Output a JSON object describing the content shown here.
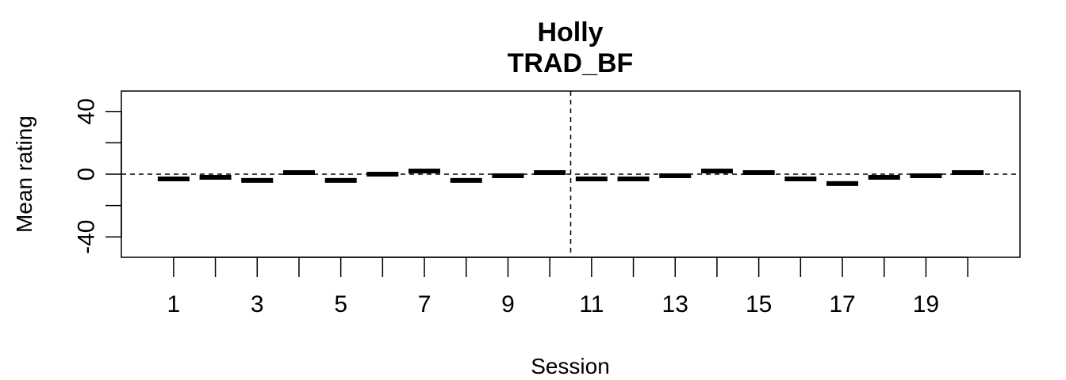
{
  "chart_data": {
    "type": "scatter",
    "title": "Holly",
    "subtitle": "TRAD_BF",
    "xlabel": "Session",
    "ylabel": "Mean rating",
    "x": [
      1,
      2,
      3,
      4,
      5,
      6,
      7,
      8,
      9,
      10,
      11,
      12,
      13,
      14,
      15,
      16,
      17,
      18,
      19,
      20
    ],
    "y": [
      -3,
      -2,
      -4,
      1,
      -4,
      0,
      2,
      -4,
      -1,
      1,
      -3,
      -3,
      -1,
      2,
      1,
      -3,
      -6,
      -2,
      -1,
      1
    ],
    "xlim": [
      -0.25,
      21.25
    ],
    "ylim": [
      -53,
      53
    ],
    "x_tick_values": [
      1,
      2,
      3,
      4,
      5,
      6,
      7,
      8,
      9,
      10,
      11,
      12,
      13,
      14,
      15,
      16,
      17,
      18,
      19,
      20
    ],
    "x_tick_labels": [
      "1",
      "",
      "3",
      "",
      "5",
      "",
      "7",
      "",
      "9",
      "",
      "11",
      "",
      "13",
      "",
      "15",
      "",
      "17",
      "",
      "19",
      ""
    ],
    "y_tick_values": [
      -40,
      -20,
      0,
      20,
      40
    ],
    "y_tick_labels": [
      "-40",
      "",
      "0",
      "",
      "40"
    ],
    "reference_lines": {
      "horizontal_y": 0,
      "vertical_x": 10.5
    },
    "grid": false,
    "marker": "horizontal-bar",
    "color": "#000000"
  }
}
